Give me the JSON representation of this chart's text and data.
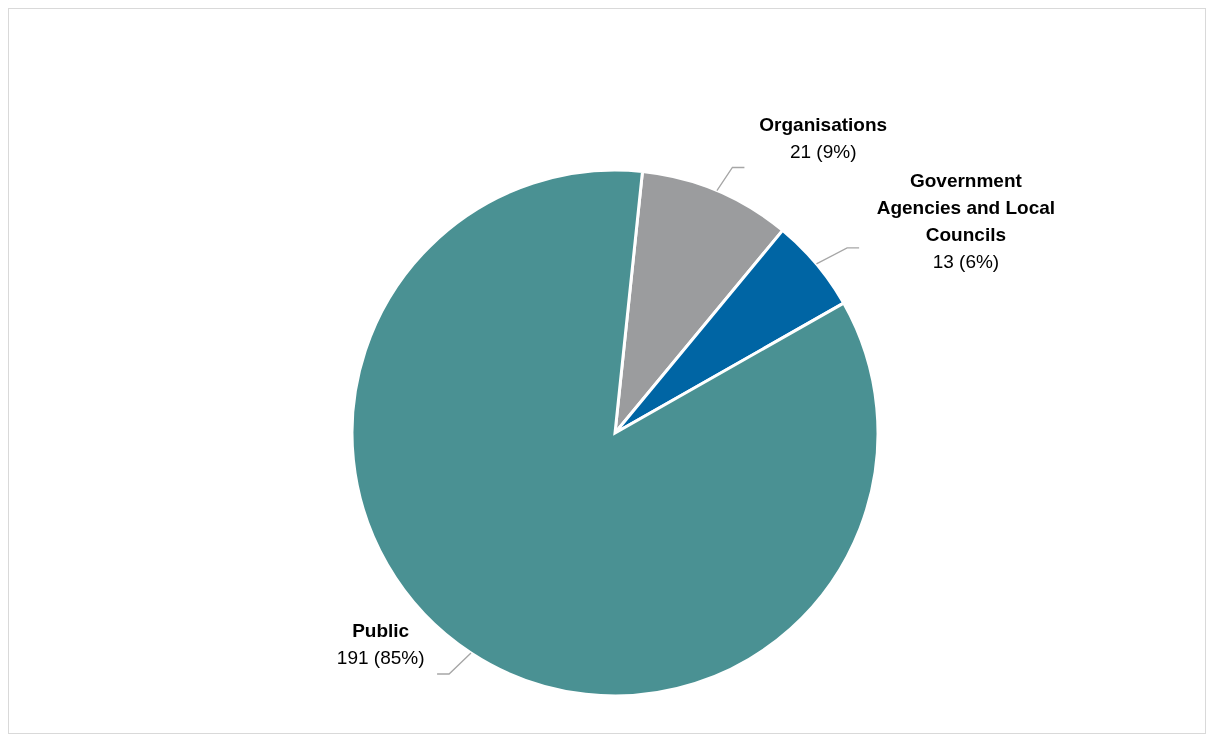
{
  "chart_data": {
    "type": "pie",
    "categories": [
      "Organisations",
      "Government Agencies and Local Councils",
      "Public"
    ],
    "values": [
      21,
      13,
      191
    ],
    "colors": [
      "#9b9c9e",
      "#0065a4",
      "#4a9193"
    ],
    "value_labels": [
      "21 (9%)",
      "13 (6%)",
      "191 (85%)"
    ]
  }
}
